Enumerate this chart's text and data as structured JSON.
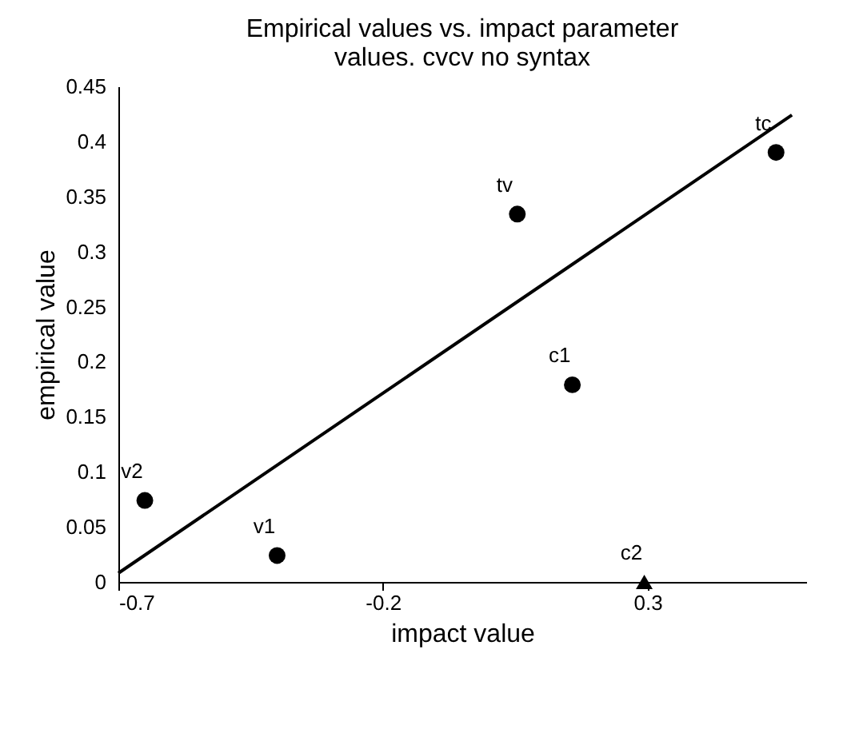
{
  "chart_data": {
    "type": "scatter",
    "title": "Empirical values vs. impact parameter values.  cvcv no syntax",
    "xlabel": "impact value",
    "ylabel": "empirical value",
    "xlim": [
      -0.7,
      0.6
    ],
    "xticks": [
      -0.7,
      -0.2,
      0.3
    ],
    "ylim": [
      0,
      0.45
    ],
    "yticks": [
      0,
      0.05,
      0.1,
      0.15,
      0.2,
      0.25,
      0.3,
      0.35,
      0.4,
      0.45
    ],
    "grid": false,
    "series": [
      {
        "name": "v2",
        "color": "#000000",
        "marker": "circle",
        "x": [
          -0.65
        ],
        "values": [
          0.074
        ]
      },
      {
        "name": "v1",
        "color": "#000000",
        "marker": "circle",
        "x": [
          -0.4
        ],
        "values": [
          0.024
        ]
      },
      {
        "name": "tv",
        "color": "#000000",
        "marker": "circle",
        "x": [
          0.054
        ],
        "values": [
          0.334
        ]
      },
      {
        "name": "c1",
        "color": "#000000",
        "marker": "circle",
        "x": [
          0.158
        ],
        "values": [
          0.179
        ]
      },
      {
        "name": "tc",
        "color": "#000000",
        "marker": "circle",
        "x": [
          0.543
        ],
        "values": [
          0.39
        ]
      },
      {
        "name": "c2",
        "color": "#000000",
        "marker": "triangle",
        "x": [
          0.294
        ],
        "values": [
          0.0
        ]
      },
      {
        "type": "line",
        "color": "#000000",
        "marker": "none",
        "line_style": "solid",
        "x": [
          -0.7,
          0.573
        ],
        "values": [
          0.008,
          0.424
        ]
      }
    ]
  }
}
